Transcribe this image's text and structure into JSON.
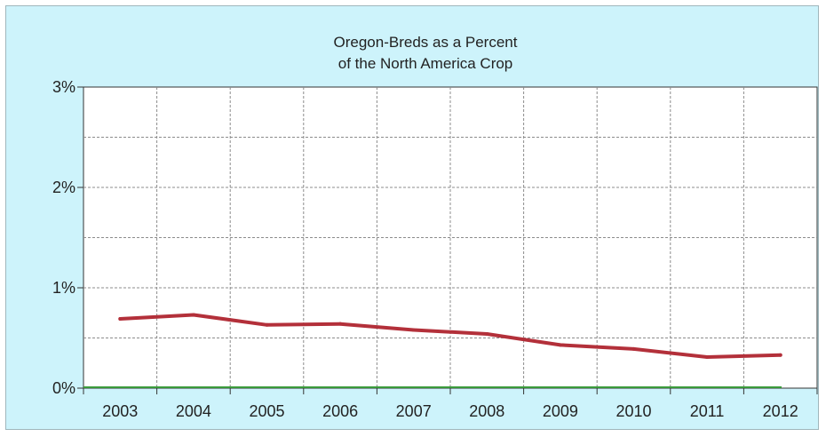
{
  "chart_data": {
    "type": "line",
    "title": "Oregon-Breds as a Percent",
    "subtitle": "of the North America Crop",
    "xlabel": "",
    "ylabel": "",
    "categories": [
      "2003",
      "2004",
      "2005",
      "2006",
      "2007",
      "2008",
      "2009",
      "2010",
      "2011",
      "2012"
    ],
    "series": [
      {
        "color": "#b3303a",
        "values": [
          0.69,
          0.73,
          0.63,
          0.64,
          0.58,
          0.54,
          0.43,
          0.39,
          0.31,
          0.33
        ]
      }
    ],
    "baseline_color": "#3a9a3a",
    "ylim": [
      0,
      3
    ],
    "yticks": [
      0,
      1,
      2,
      3
    ],
    "ytick_labels": [
      "0%",
      "1%",
      "2%",
      "3%"
    ],
    "grid": true,
    "background_color": "#cdf3fb",
    "plot_background_color": "#ffffff"
  }
}
